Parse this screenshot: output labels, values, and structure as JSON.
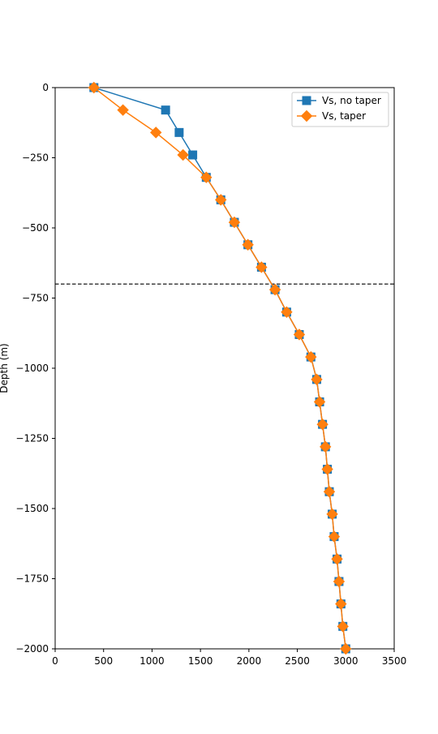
{
  "chart_data": {
    "type": "line",
    "title": "",
    "xlabel": "",
    "ylabel": "Depth (m)",
    "xlim": [
      0,
      3500
    ],
    "ylim": [
      -2000,
      0
    ],
    "xticks": [
      0,
      500,
      1000,
      1500,
      2000,
      2500,
      3000,
      3500
    ],
    "yticks": [
      0,
      -250,
      -500,
      -750,
      -1000,
      -1250,
      -1500,
      -1750,
      -2000
    ],
    "xtick_labels": [
      "0",
      "500",
      "1000",
      "1500",
      "2000",
      "2500",
      "3000",
      "3500"
    ],
    "ytick_labels": [
      "0",
      "−250",
      "−500",
      "−750",
      "−1000",
      "−1250",
      "−1500",
      "−1750",
      "−2000"
    ],
    "grid": false,
    "legend_position": "top-right",
    "hline": {
      "y": -700,
      "style": "dashed",
      "color": "#000000"
    },
    "series": [
      {
        "name": "Vs, no taper",
        "color": "#1f77b4",
        "marker": "square",
        "x": [
          400,
          1140,
          1280,
          1420,
          1560,
          1710,
          1850,
          1990,
          2130,
          2270,
          2390,
          2520,
          2640,
          2700,
          2730,
          2760,
          2790,
          2810,
          2830,
          2860,
          2880,
          2910,
          2930,
          2950,
          2970,
          3000
        ],
        "y": [
          0,
          -80,
          -160,
          -240,
          -320,
          -400,
          -480,
          -560,
          -640,
          -720,
          -800,
          -880,
          -960,
          -1040,
          -1120,
          -1200,
          -1280,
          -1360,
          -1440,
          -1520,
          -1600,
          -1680,
          -1760,
          -1840,
          -1920,
          -2000
        ]
      },
      {
        "name": "Vs, taper",
        "color": "#ff7f0e",
        "marker": "diamond",
        "x": [
          400,
          700,
          1040,
          1320,
          1560,
          1710,
          1850,
          1990,
          2130,
          2270,
          2390,
          2520,
          2640,
          2700,
          2730,
          2760,
          2790,
          2810,
          2830,
          2860,
          2880,
          2910,
          2930,
          2950,
          2970,
          3000
        ],
        "y": [
          0,
          -80,
          -160,
          -240,
          -320,
          -400,
          -480,
          -560,
          -640,
          -720,
          -800,
          -880,
          -960,
          -1040,
          -1120,
          -1200,
          -1280,
          -1360,
          -1440,
          -1520,
          -1600,
          -1680,
          -1760,
          -1840,
          -1920,
          -2000
        ]
      }
    ]
  }
}
